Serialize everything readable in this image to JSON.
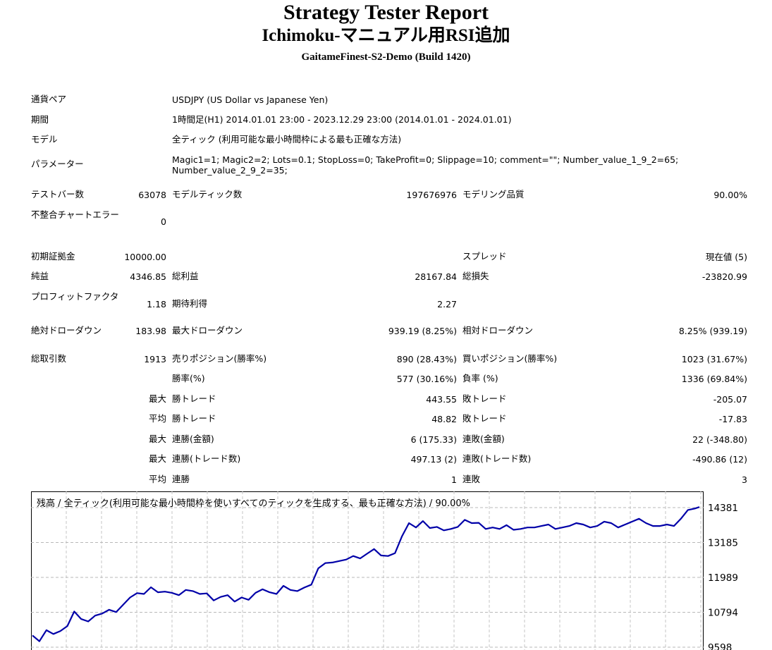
{
  "header": {
    "title": "Strategy Tester Report",
    "subtitle": "Ichimoku-マニュアル用RSI追加",
    "server": "GaitameFinest-S2-Demo (Build 1420)"
  },
  "info": {
    "symbol_label": "通貨ペア",
    "symbol_value": "USDJPY (US Dollar vs Japanese Yen)",
    "period_label": "期間",
    "period_value": "1時間足(H1) 2014.01.01 23:00 - 2023.12.29 23:00 (2014.01.01 - 2024.01.01)",
    "model_label": "モデル",
    "model_value": "全ティック (利用可能な最小時間枠による最も正確な方法)",
    "params_label": "パラメーター",
    "params_line1": "Magic1=1; Magic2=2; Lots=0.1; StopLoss=0; TakeProfit=0; Slippage=10; comment=\"\"; Number_value_1_9_2=65;",
    "params_line2": "Number_value_2_9_2=35;"
  },
  "stats": {
    "bars_label": "テストバー数",
    "bars_value": "63078",
    "ticks_label": "モデルティック数",
    "ticks_value": "197676976",
    "quality_label": "モデリング品質",
    "quality_value": "90.00%",
    "mismatch_label": "不整合チャートエラー",
    "mismatch_value": "0",
    "deposit_label": "初期証拠金",
    "deposit_value": "10000.00",
    "spread_label": "スプレッド",
    "spread_value": "現在値 (5)",
    "net_label": "純益",
    "net_value": "4346.85",
    "gross_profit_label": "総利益",
    "gross_profit_value": "28167.84",
    "gross_loss_label": "総損失",
    "gross_loss_value": "-23820.99",
    "pf_label": "プロフィットファクタ",
    "pf_value": "1.18",
    "expected_label": "期待利得",
    "expected_value": "2.27",
    "abs_dd_label": "絶対ドローダウン",
    "abs_dd_value": "183.98",
    "max_dd_label": "最大ドローダウン",
    "max_dd_value": "939.19 (8.25%)",
    "rel_dd_label": "相対ドローダウン",
    "rel_dd_value": "8.25% (939.19)",
    "trades_label": "総取引数",
    "trades_value": "1913",
    "short_label": "売りポジション(勝率%)",
    "short_value": "890 (28.43%)",
    "long_label": "買いポジション(勝率%)",
    "long_value": "1023 (31.67%)",
    "win_rate_label": "勝率(%)",
    "win_rate_value": "577 (30.16%)",
    "loss_rate_label": "負率 (%)",
    "loss_rate_value": "1336 (69.84%)",
    "max_label": "最大",
    "avg_label": "平均",
    "win_trade_label": "勝トレード",
    "loss_trade_label": "敗トレード",
    "max_win_value": "443.55",
    "max_loss_value": "-205.07",
    "avg_win_value": "48.82",
    "avg_loss_value": "-17.83",
    "cons_win_amount_label": "連勝(金額)",
    "cons_win_amount_value": "6 (175.33)",
    "cons_loss_amount_label": "連敗(金額)",
    "cons_loss_amount_value": "22 (-348.80)",
    "cons_win_trades_label": "連勝(トレード数)",
    "cons_win_trades_value": "497.13 (2)",
    "cons_loss_trades_label": "連敗(トレード数)",
    "cons_loss_trades_value": "-490.86 (12)",
    "avg_cons_win_label": "連勝",
    "avg_cons_win_value": "1",
    "avg_cons_loss_label": "連敗",
    "avg_cons_loss_value": "3"
  },
  "chart_data": {
    "type": "line",
    "title": "残高 / 全ティック(利用可能な最小時間枠を使いすべてのティックを生成する、最も正確な方法) / 90.00%",
    "y_tick_labels": [
      "14381",
      "13185",
      "11989",
      "10794",
      "9598"
    ],
    "y_ticks": [
      14381,
      13185,
      11989,
      10794,
      9598
    ],
    "grid": true,
    "line_color": "#0000a8",
    "series": [
      {
        "x": [
          0,
          20,
          40,
          60,
          80,
          100,
          120,
          140,
          160,
          180,
          200,
          220,
          240,
          260,
          280,
          300,
          320,
          340,
          360,
          380,
          400,
          420,
          440,
          460,
          480,
          500,
          520,
          540,
          560,
          580,
          600,
          620,
          640,
          660,
          680,
          700,
          720,
          740,
          760,
          780,
          800,
          820,
          840,
          860,
          880,
          900,
          920,
          940,
          960,
          980,
          1000,
          1020,
          1040,
          1060,
          1080,
          1100,
          1120,
          1140,
          1160,
          1180,
          1200,
          1220,
          1240,
          1260,
          1280,
          1300,
          1320,
          1340,
          1360,
          1380,
          1400,
          1420,
          1440,
          1460,
          1480,
          1500,
          1520,
          1540,
          1560,
          1580,
          1600,
          1620,
          1640,
          1660,
          1680,
          1700,
          1720,
          1740,
          1760,
          1780,
          1800,
          1820,
          1840,
          1860,
          1880,
          1900,
          1913
        ],
        "y": [
          10000,
          9800,
          10180,
          10050,
          10150,
          10320,
          10820,
          10560,
          10480,
          10680,
          10750,
          10880,
          10800,
          11050,
          11300,
          11450,
          11420,
          11650,
          11480,
          11500,
          11460,
          11380,
          11560,
          11520,
          11420,
          11440,
          11200,
          11320,
          11380,
          11160,
          11300,
          11220,
          11460,
          11580,
          11480,
          11420,
          11700,
          11560,
          11520,
          11640,
          11740,
          12300,
          12480,
          12500,
          12550,
          12600,
          12720,
          12640,
          12800,
          12960,
          12740,
          12720,
          12820,
          13400,
          13850,
          13700,
          13920,
          13680,
          13720,
          13600,
          13650,
          13720,
          13960,
          13850,
          13860,
          13650,
          13700,
          13650,
          13780,
          13620,
          13650,
          13700,
          13700,
          13750,
          13800,
          13650,
          13700,
          13750,
          13850,
          13800,
          13700,
          13750,
          13900,
          13850,
          13700,
          13800,
          13900,
          14000,
          13850,
          13750,
          13750,
          13800,
          13750,
          14000,
          14300,
          14350,
          14400
        ]
      }
    ]
  }
}
